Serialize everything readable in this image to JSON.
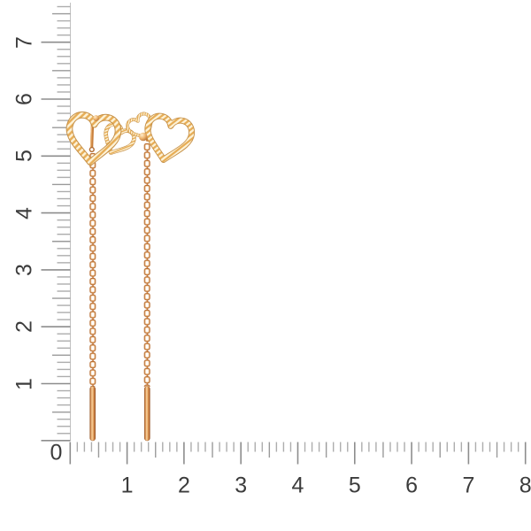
{
  "colors": {
    "background": "#ffffff",
    "ruler-tick-long": "#8d8d8d",
    "ruler-tick-medium": "#9a9a9a",
    "ruler-tick-short": "#adadad",
    "ruler-edge": "#c2c2c2",
    "ruler-label": "#3c3c3c",
    "gold-light": "#fdf2d6",
    "gold-mid": "#e7ae58",
    "gold-dark": "#c28a3e",
    "gold-deep": "#9d5926"
  },
  "rulers": {
    "corner_label": "0",
    "vertical": {
      "labels": [
        "1",
        "2",
        "3",
        "4",
        "5",
        "6",
        "7"
      ]
    },
    "horizontal": {
      "labels": [
        "1",
        "2",
        "3",
        "4",
        "5",
        "6",
        "7",
        "8"
      ]
    }
  },
  "product": {
    "alt": "pair of gold threader earrings with double open-heart tops, cable chains and drop bars"
  }
}
